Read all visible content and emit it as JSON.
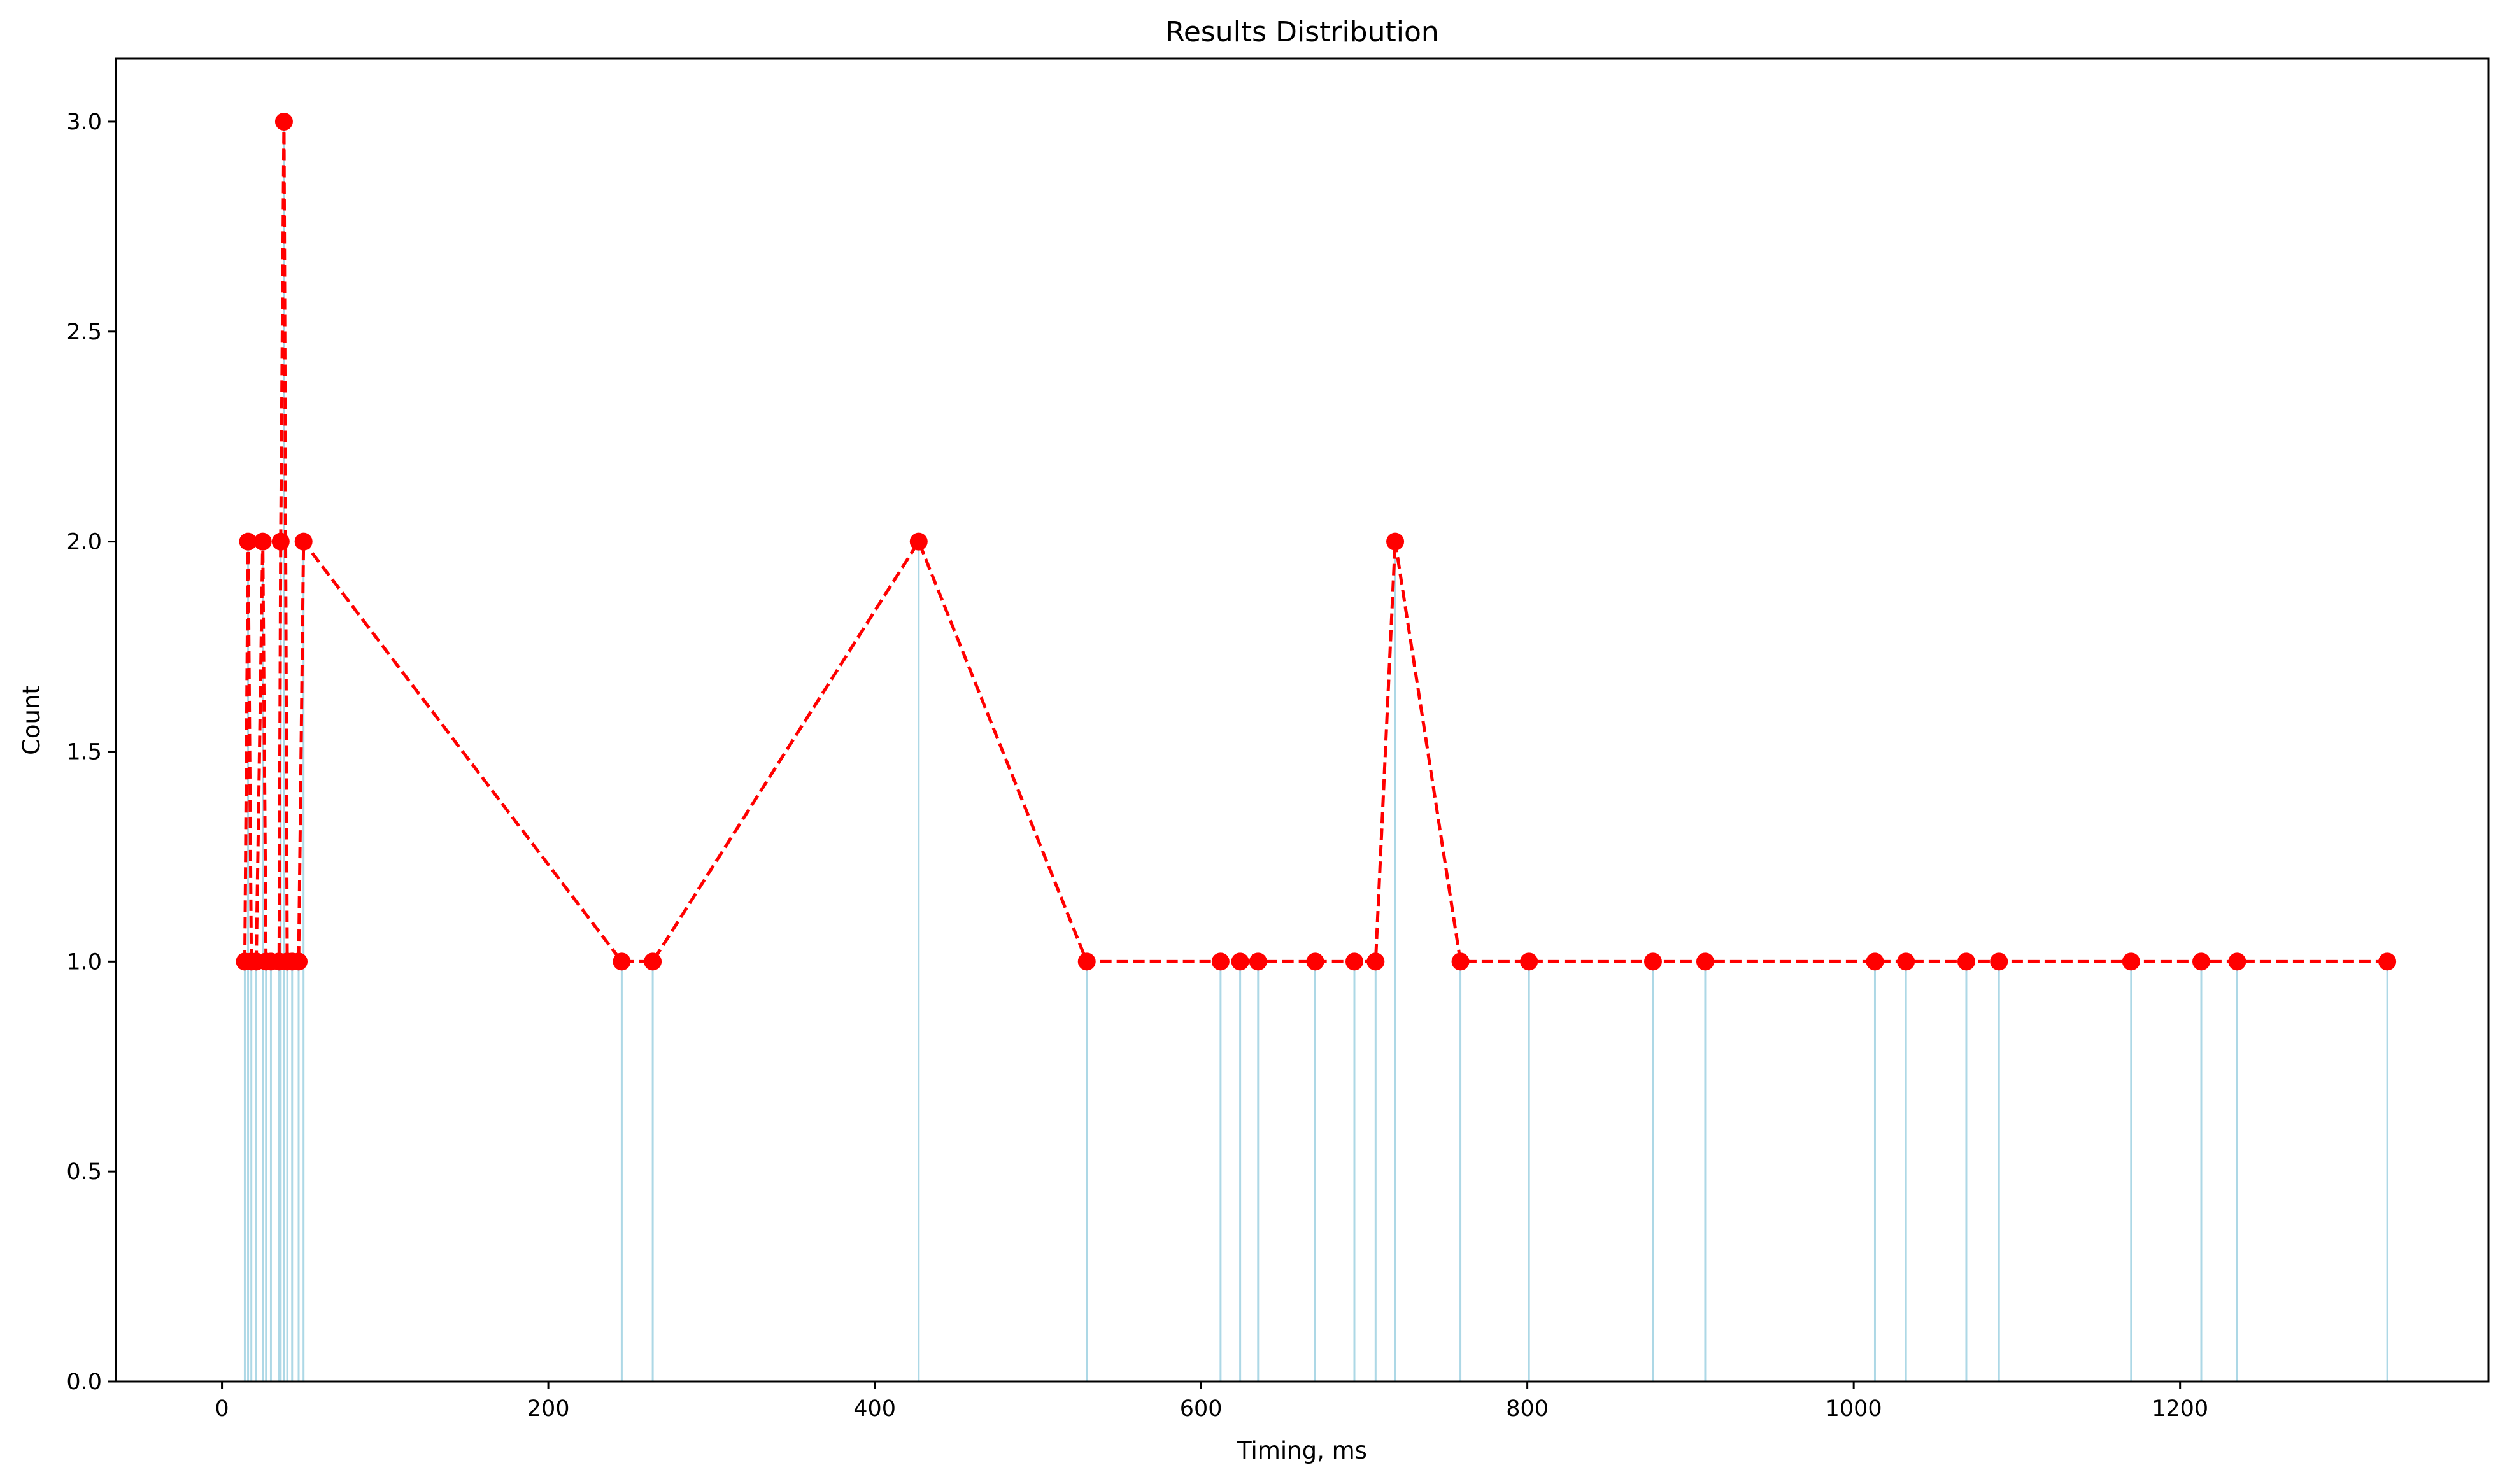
{
  "chart_data": {
    "type": "line",
    "title": "Results Distribution",
    "xlabel": "Timing, ms",
    "ylabel": "Count",
    "xlim": [
      -65,
      1389
    ],
    "ylim": [
      0,
      3.15
    ],
    "xticks": [
      0,
      200,
      400,
      600,
      800,
      1000,
      1200
    ],
    "xtick_labels": [
      "0",
      "200",
      "400",
      "600",
      "800",
      "1000",
      "1200"
    ],
    "yticks": [
      0,
      0.5,
      1.0,
      1.5,
      2.0,
      2.5,
      3.0
    ],
    "ytick_labels": [
      "0.0",
      "0.5",
      "1.0",
      "1.5",
      "2.0",
      "2.5",
      "3.0"
    ],
    "grid": false,
    "colors": {
      "line": "#ff0000",
      "bars": "#add8e6",
      "axes": "#000000"
    },
    "series": [
      {
        "style": "red dashed line with circle markers, light-blue vertical bars",
        "points": [
          [
            14,
            1
          ],
          [
            16,
            2
          ],
          [
            18,
            1
          ],
          [
            21,
            1
          ],
          [
            25,
            2
          ],
          [
            27,
            1
          ],
          [
            30,
            1
          ],
          [
            35,
            1
          ],
          [
            36,
            2
          ],
          [
            38,
            3
          ],
          [
            40,
            1
          ],
          [
            43,
            1
          ],
          [
            47,
            1
          ],
          [
            50,
            2
          ],
          [
            245,
            1
          ],
          [
            264,
            1
          ],
          [
            427,
            2
          ],
          [
            530,
            1
          ],
          [
            612,
            1
          ],
          [
            624,
            1
          ],
          [
            635,
            1
          ],
          [
            670,
            1
          ],
          [
            694,
            1
          ],
          [
            707,
            1
          ],
          [
            719,
            2
          ],
          [
            759,
            1
          ],
          [
            801,
            1
          ],
          [
            877,
            1
          ],
          [
            909,
            1
          ],
          [
            1013,
            1
          ],
          [
            1032,
            1
          ],
          [
            1069,
            1
          ],
          [
            1089,
            1
          ],
          [
            1170,
            1
          ],
          [
            1213,
            1
          ],
          [
            1235,
            1
          ],
          [
            1327,
            1
          ]
        ]
      }
    ]
  }
}
